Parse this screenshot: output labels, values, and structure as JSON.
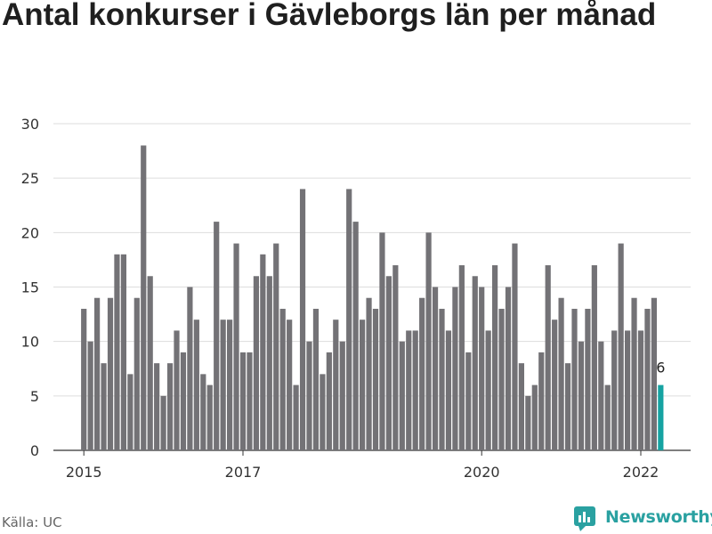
{
  "title": "Antal konkurser i Gävleborgs län per månad",
  "source": "Källa: UC",
  "brand": "Newsworthy",
  "colors": {
    "bar": "#737276",
    "highlight": "#16a3a2",
    "grid": "#dddddd",
    "brand": "#2aa1a1"
  },
  "icons": [
    "newsworthy-logo-icon"
  ],
  "chart_data": {
    "type": "bar",
    "xlabel": "",
    "ylabel": "",
    "ylim": [
      0,
      30
    ],
    "yticks": [
      0,
      5,
      10,
      15,
      20,
      25,
      30
    ],
    "xticks": [
      {
        "label": "2015",
        "index": 0
      },
      {
        "label": "2017",
        "index": 24
      },
      {
        "label": "2020",
        "index": 60
      },
      {
        "label": "2022",
        "index": 84
      }
    ],
    "grid": true,
    "start": "2015-01",
    "values": [
      13,
      10,
      14,
      8,
      14,
      18,
      18,
      7,
      14,
      28,
      16,
      8,
      5,
      8,
      11,
      9,
      15,
      12,
      7,
      6,
      21,
      12,
      12,
      19,
      9,
      9,
      16,
      18,
      16,
      19,
      13,
      12,
      6,
      24,
      10,
      13,
      7,
      9,
      12,
      10,
      24,
      21,
      12,
      14,
      13,
      20,
      16,
      17,
      10,
      11,
      11,
      14,
      20,
      15,
      13,
      11,
      15,
      17,
      9,
      16,
      15,
      11,
      17,
      13,
      15,
      19,
      8,
      5,
      6,
      9,
      17,
      12,
      14,
      8,
      13,
      10,
      13,
      17,
      10,
      6,
      11,
      19,
      11,
      14,
      11,
      13,
      14,
      6
    ],
    "highlight": {
      "index": 87,
      "label": "6"
    }
  }
}
